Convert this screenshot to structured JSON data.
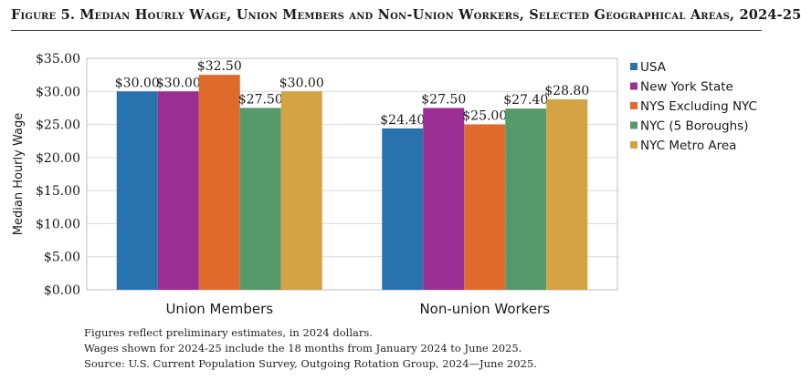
{
  "title": "Figure 5. Median Hourly Wage, Union Members and Non-Union Workers, Selected Geographical Areas, 2024-25",
  "chart_data": {
    "type": "bar",
    "title": "Figure 5. Median Hourly Wage, Union Members and Non-Union Workers, Selected Geographical Areas, 2024-25",
    "xlabel": "",
    "ylabel": "Median Hourly Wage",
    "ylim": [
      0,
      35
    ],
    "yticks": [
      0,
      5,
      10,
      15,
      20,
      25,
      30,
      35
    ],
    "ytick_labels": [
      "$0.00",
      "$5.00",
      "$10.00",
      "$15.00",
      "$20.00",
      "$25.00",
      "$30.00",
      "$35.00"
    ],
    "grid": true,
    "legend_position": "right",
    "categories": [
      "Union Members",
      "Non-union Workers"
    ],
    "series": [
      {
        "name": "USA",
        "color": "#2873ad",
        "values": [
          30.0,
          24.4
        ],
        "labels": [
          "$30.00",
          "$24.40"
        ]
      },
      {
        "name": "New York State",
        "color": "#9b2e93",
        "values": [
          30.0,
          27.5
        ],
        "labels": [
          "$30.00",
          "$27.50"
        ]
      },
      {
        "name": "NYS Excluding NYC",
        "color": "#e06a2c",
        "values": [
          32.5,
          25.0
        ],
        "labels": [
          "$32.50",
          "$25.00"
        ]
      },
      {
        "name": "NYC (5 Boroughs)",
        "color": "#56996a",
        "values": [
          27.5,
          27.4
        ],
        "labels": [
          "$27.50",
          "$27.40"
        ]
      },
      {
        "name": "NYC Metro Area",
        "color": "#d4a344",
        "values": [
          30.0,
          28.8
        ],
        "labels": [
          "$30.00",
          "$28.80"
        ]
      }
    ]
  },
  "notes": [
    "Figures reflect preliminary estimates, in 2024 dollars.",
    "Wages shown for 2024-25 include the 18 months from January 2024 to June 2025.",
    "Source: U.S. Current Population Survey, Outgoing Rotation Group, 2024—June 2025."
  ]
}
